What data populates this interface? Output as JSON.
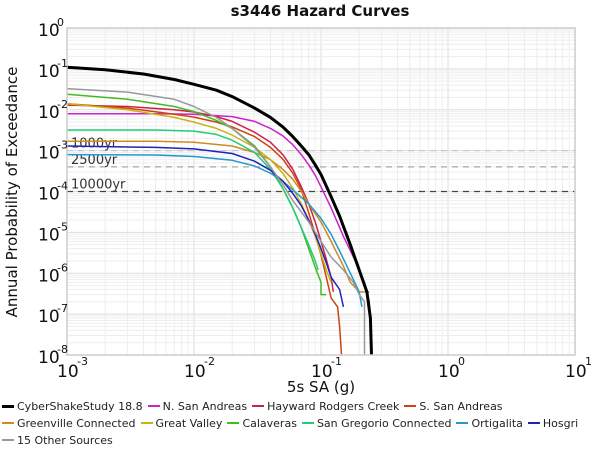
{
  "chart_data": {
    "type": "line",
    "title": "s3446 Hazard Curves",
    "xlabel": "5s SA (g)",
    "ylabel": "Annual Probability of Exceedance",
    "xscale": "log",
    "yscale": "log",
    "xlim": [
      0.001,
      10
    ],
    "ylim": [
      1e-08,
      1
    ],
    "grid": true,
    "x_ticks": [
      {
        "base": "10",
        "exp": "-3",
        "value": 0.001
      },
      {
        "base": "10",
        "exp": "-2",
        "value": 0.01
      },
      {
        "base": "10",
        "exp": "-1",
        "value": 0.1
      },
      {
        "base": "10",
        "exp": "0",
        "value": 1
      },
      {
        "base": "10",
        "exp": "1",
        "value": 10
      }
    ],
    "y_ticks": [
      {
        "base": "10",
        "exp": "0",
        "value": 1
      },
      {
        "base": "10",
        "exp": "-1",
        "value": 0.1
      },
      {
        "base": "10",
        "exp": "-2",
        "value": 0.01
      },
      {
        "base": "10",
        "exp": "-3",
        "value": 0.001
      },
      {
        "base": "10",
        "exp": "-4",
        "value": 0.0001
      },
      {
        "base": "10",
        "exp": "-5",
        "value": 1e-05
      },
      {
        "base": "10",
        "exp": "-6",
        "value": 1e-06
      },
      {
        "base": "10",
        "exp": "-7",
        "value": 1e-07
      },
      {
        "base": "10",
        "exp": "-8",
        "value": 1e-08
      }
    ],
    "reference_lines": [
      {
        "label": "1000yr",
        "y": 0.001,
        "color": "#c8c8c8"
      },
      {
        "label": "2500yr",
        "y": 0.0004,
        "color": "#a8a8a8"
      },
      {
        "label": "10000yr",
        "y": 0.0001,
        "color": "#444444"
      }
    ],
    "legend_position": "bottom",
    "series": [
      {
        "name": "CyberShakeStudy 18.8",
        "color": "#000000",
        "width": 3,
        "points": [
          [
            0.001,
            0.11
          ],
          [
            0.002,
            0.095
          ],
          [
            0.004,
            0.075
          ],
          [
            0.007,
            0.055
          ],
          [
            0.01,
            0.042
          ],
          [
            0.015,
            0.03
          ],
          [
            0.02,
            0.021
          ],
          [
            0.03,
            0.011
          ],
          [
            0.04,
            0.0065
          ],
          [
            0.05,
            0.0038
          ],
          [
            0.06,
            0.0022
          ],
          [
            0.07,
            0.0013
          ],
          [
            0.08,
            0.0008
          ],
          [
            0.09,
            0.00045
          ],
          [
            0.1,
            0.00026
          ],
          [
            0.12,
            7.5e-05
          ],
          [
            0.14,
            2.5e-05
          ],
          [
            0.17,
            5e-06
          ],
          [
            0.2,
            1.2e-06
          ],
          [
            0.23,
            3.5e-07
          ],
          [
            0.245,
            8e-08
          ],
          [
            0.25,
            1e-08
          ]
        ]
      },
      {
        "name": "N. San Andreas",
        "color": "#cc22cc",
        "width": 1.5,
        "points": [
          [
            0.001,
            0.008
          ],
          [
            0.005,
            0.008
          ],
          [
            0.01,
            0.0078
          ],
          [
            0.02,
            0.0068
          ],
          [
            0.03,
            0.0052
          ],
          [
            0.04,
            0.0035
          ],
          [
            0.05,
            0.0023
          ],
          [
            0.06,
            0.0014
          ],
          [
            0.07,
            0.0008
          ],
          [
            0.08,
            0.00045
          ],
          [
            0.09,
            0.00025
          ],
          [
            0.1,
            0.00013
          ],
          [
            0.12,
            4e-05
          ],
          [
            0.15,
            8e-06
          ],
          [
            0.18,
            2.5e-06
          ],
          [
            0.22,
            6e-07
          ],
          [
            0.24,
            2e-07
          ],
          [
            0.25,
            1e-08
          ]
        ]
      },
      {
        "name": "Hayward Rodgers Creek",
        "color": "#cc2244",
        "width": 1.5,
        "points": [
          [
            0.001,
            0.013
          ],
          [
            0.003,
            0.012
          ],
          [
            0.007,
            0.01
          ],
          [
            0.01,
            0.0088
          ],
          [
            0.015,
            0.0068
          ],
          [
            0.02,
            0.0052
          ],
          [
            0.03,
            0.0028
          ],
          [
            0.04,
            0.0016
          ],
          [
            0.05,
            0.0008
          ],
          [
            0.06,
            0.00035
          ],
          [
            0.07,
            0.00013
          ],
          [
            0.08,
            5e-05
          ],
          [
            0.09,
            1.8e-05
          ],
          [
            0.1,
            6e-06
          ],
          [
            0.11,
            2.2e-06
          ],
          [
            0.12,
            8e-07
          ],
          [
            0.125,
            3.5e-07
          ]
        ]
      },
      {
        "name": "S. San Andreas",
        "color": "#cc4411",
        "width": 1.5,
        "points": [
          [
            0.001,
            0.014
          ],
          [
            0.003,
            0.011
          ],
          [
            0.007,
            0.0078
          ],
          [
            0.01,
            0.0066
          ],
          [
            0.015,
            0.005
          ],
          [
            0.02,
            0.0038
          ],
          [
            0.03,
            0.0022
          ],
          [
            0.04,
            0.0012
          ],
          [
            0.05,
            0.00062
          ],
          [
            0.06,
            0.00028
          ],
          [
            0.07,
            0.00011
          ],
          [
            0.08,
            3e-05
          ],
          [
            0.09,
            9e-06
          ],
          [
            0.1,
            2.8e-06
          ],
          [
            0.11,
            8e-07
          ],
          [
            0.12,
            2.5e-07
          ],
          [
            0.135,
            1.5e-07
          ],
          [
            0.14,
            5e-08
          ],
          [
            0.145,
            1e-08
          ]
        ]
      },
      {
        "name": "Greenville Connected",
        "color": "#d08a22",
        "width": 1.5,
        "points": [
          [
            0.001,
            0.0017
          ],
          [
            0.005,
            0.0017
          ],
          [
            0.01,
            0.0016
          ],
          [
            0.02,
            0.0013
          ],
          [
            0.03,
            0.0009
          ],
          [
            0.04,
            0.0006
          ],
          [
            0.05,
            0.00035
          ],
          [
            0.06,
            0.0002
          ],
          [
            0.07,
            0.0001
          ],
          [
            0.08,
            5e-05
          ],
          [
            0.1,
            1.8e-05
          ],
          [
            0.12,
            6e-06
          ],
          [
            0.15,
            1.5e-06
          ],
          [
            0.17,
            6e-07
          ],
          [
            0.2,
            3.5e-07
          ],
          [
            0.24,
            3.5e-07
          ]
        ]
      },
      {
        "name": "Great Valley",
        "color": "#c8b414",
        "width": 1.5,
        "points": [
          [
            0.001,
            0.014
          ],
          [
            0.003,
            0.01
          ],
          [
            0.007,
            0.0065
          ],
          [
            0.01,
            0.005
          ],
          [
            0.015,
            0.0035
          ],
          [
            0.02,
            0.0024
          ],
          [
            0.03,
            0.0012
          ],
          [
            0.04,
            0.0006
          ],
          [
            0.05,
            0.00028
          ],
          [
            0.06,
            0.00012
          ],
          [
            0.07,
            5e-05
          ],
          [
            0.08,
            2e-05
          ],
          [
            0.09,
            8e-06
          ],
          [
            0.1,
            3e-06
          ],
          [
            0.11,
            1.2e-06
          ],
          [
            0.12,
            6e-07
          ]
        ]
      },
      {
        "name": "Calaveras",
        "color": "#44bb22",
        "width": 1.5,
        "points": [
          [
            0.001,
            0.024
          ],
          [
            0.003,
            0.018
          ],
          [
            0.007,
            0.012
          ],
          [
            0.01,
            0.009
          ],
          [
            0.015,
            0.0055
          ],
          [
            0.02,
            0.0035
          ],
          [
            0.03,
            0.0013
          ],
          [
            0.04,
            0.0004
          ],
          [
            0.05,
            0.00012
          ],
          [
            0.06,
            4e-05
          ],
          [
            0.07,
            1.3e-05
          ],
          [
            0.08,
            4e-06
          ],
          [
            0.09,
            1.4e-06
          ],
          [
            0.1,
            6e-07
          ],
          [
            0.1,
            3e-07
          ],
          [
            0.11,
            3e-07
          ]
        ]
      },
      {
        "name": "San Gregorio Connected",
        "color": "#22cc77",
        "width": 1.5,
        "points": [
          [
            0.001,
            0.0032
          ],
          [
            0.005,
            0.0032
          ],
          [
            0.01,
            0.003
          ],
          [
            0.015,
            0.0025
          ],
          [
            0.02,
            0.0018
          ],
          [
            0.03,
            0.0009
          ],
          [
            0.04,
            0.00035
          ],
          [
            0.05,
            0.00012
          ],
          [
            0.06,
            4e-05
          ],
          [
            0.07,
            1.3e-05
          ],
          [
            0.08,
            5e-06
          ],
          [
            0.09,
            2e-06
          ],
          [
            0.095,
            1.2e-06
          ]
        ]
      },
      {
        "name": "Ortigalita",
        "color": "#2299cc",
        "width": 1.5,
        "points": [
          [
            0.001,
            0.0008
          ],
          [
            0.005,
            0.00078
          ],
          [
            0.01,
            0.00072
          ],
          [
            0.02,
            0.00058
          ],
          [
            0.03,
            0.00042
          ],
          [
            0.04,
            0.00028
          ],
          [
            0.05,
            0.00018
          ],
          [
            0.06,
            0.00011
          ],
          [
            0.08,
            5e-05
          ],
          [
            0.1,
            2.2e-05
          ],
          [
            0.12,
            9e-06
          ],
          [
            0.14,
            3.5e-06
          ],
          [
            0.16,
            1.5e-06
          ],
          [
            0.18,
            7e-07
          ],
          [
            0.2,
            3.5e-07
          ],
          [
            0.21,
            1.5e-07
          ]
        ]
      },
      {
        "name": "Hosgri",
        "color": "#2222bb",
        "width": 1.5,
        "points": [
          [
            0.001,
            0.0013
          ],
          [
            0.005,
            0.0012
          ],
          [
            0.01,
            0.0011
          ],
          [
            0.02,
            0.00085
          ],
          [
            0.03,
            0.00055
          ],
          [
            0.04,
            0.00033
          ],
          [
            0.05,
            0.00018
          ],
          [
            0.06,
            9e-05
          ],
          [
            0.07,
            4.5e-05
          ],
          [
            0.08,
            2e-05
          ],
          [
            0.09,
            9e-06
          ],
          [
            0.1,
            4e-06
          ],
          [
            0.11,
            1.8e-06
          ],
          [
            0.12,
            8e-07
          ],
          [
            0.14,
            4e-07
          ],
          [
            0.15,
            1.5e-07
          ]
        ]
      },
      {
        "name": "15 Other Sources",
        "color": "#999999",
        "width": 1.5,
        "points": [
          [
            0.001,
            0.033
          ],
          [
            0.003,
            0.027
          ],
          [
            0.007,
            0.018
          ],
          [
            0.01,
            0.012
          ],
          [
            0.015,
            0.0065
          ],
          [
            0.02,
            0.0035
          ],
          [
            0.03,
            0.0012
          ],
          [
            0.04,
            0.0004
          ],
          [
            0.05,
            0.00015
          ],
          [
            0.06,
            6e-05
          ],
          [
            0.08,
            1.8e-05
          ],
          [
            0.1,
            6e-06
          ],
          [
            0.12,
            2.5e-06
          ],
          [
            0.15,
            1.2e-06
          ],
          [
            0.18,
            6e-07
          ],
          [
            0.2,
            3e-07
          ],
          [
            0.22,
            2e-07
          ],
          [
            0.22,
            1e-08
          ]
        ]
      }
    ]
  },
  "legend_rows": [
    [
      0,
      1,
      2,
      3
    ],
    [
      4,
      5,
      6,
      7,
      8,
      9
    ],
    [
      10
    ]
  ]
}
